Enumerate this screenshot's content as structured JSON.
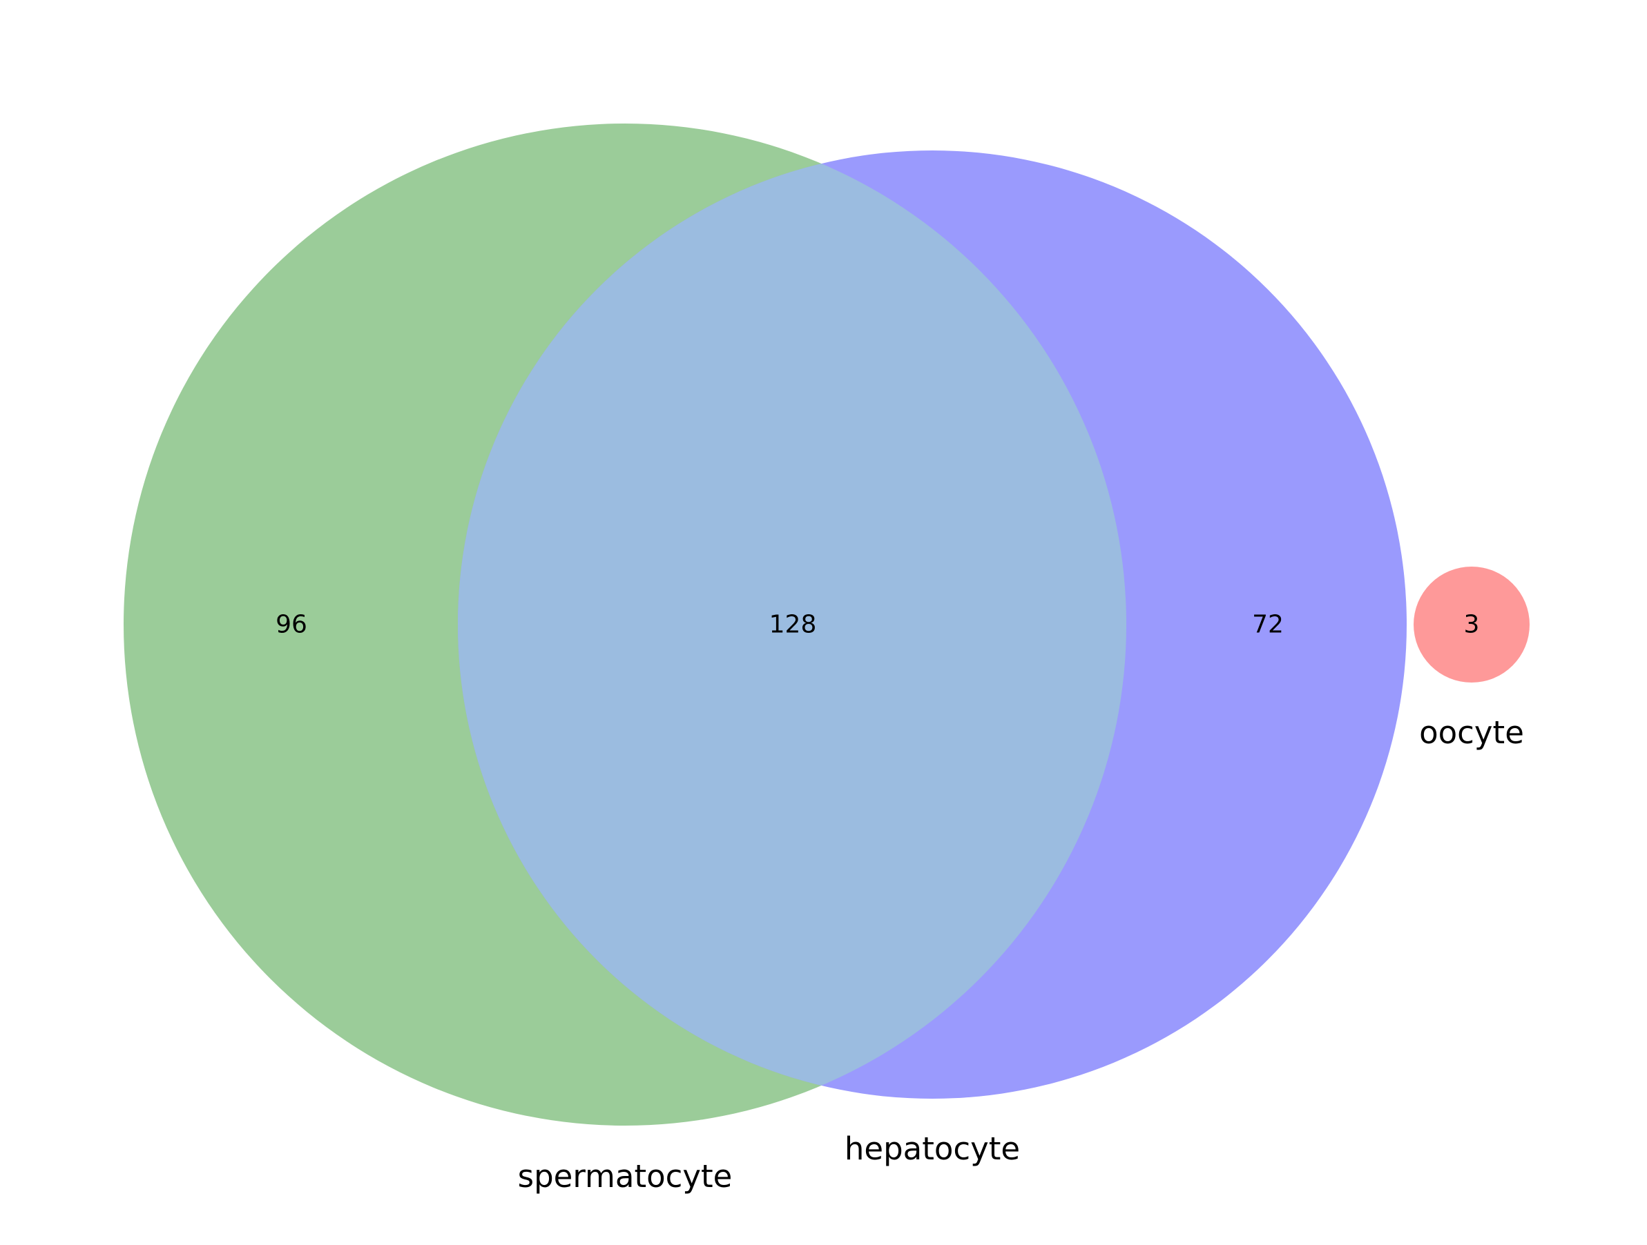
{
  "chart_data": {
    "type": "venn",
    "sets": [
      {
        "name": "spermatocyte",
        "color": "#9bcc99"
      },
      {
        "name": "hepatocyte",
        "color": "#9a9afd"
      },
      {
        "name": "oocyte",
        "color": "#fe9999"
      }
    ],
    "overlap_color": "#9bbce0",
    "regions": [
      {
        "sets": [
          "spermatocyte"
        ],
        "label": "96"
      },
      {
        "sets": [
          "spermatocyte",
          "hepatocyte"
        ],
        "label": "128"
      },
      {
        "sets": [
          "hepatocyte"
        ],
        "label": "72"
      },
      {
        "sets": [
          "oocyte"
        ],
        "label": "3"
      }
    ]
  }
}
